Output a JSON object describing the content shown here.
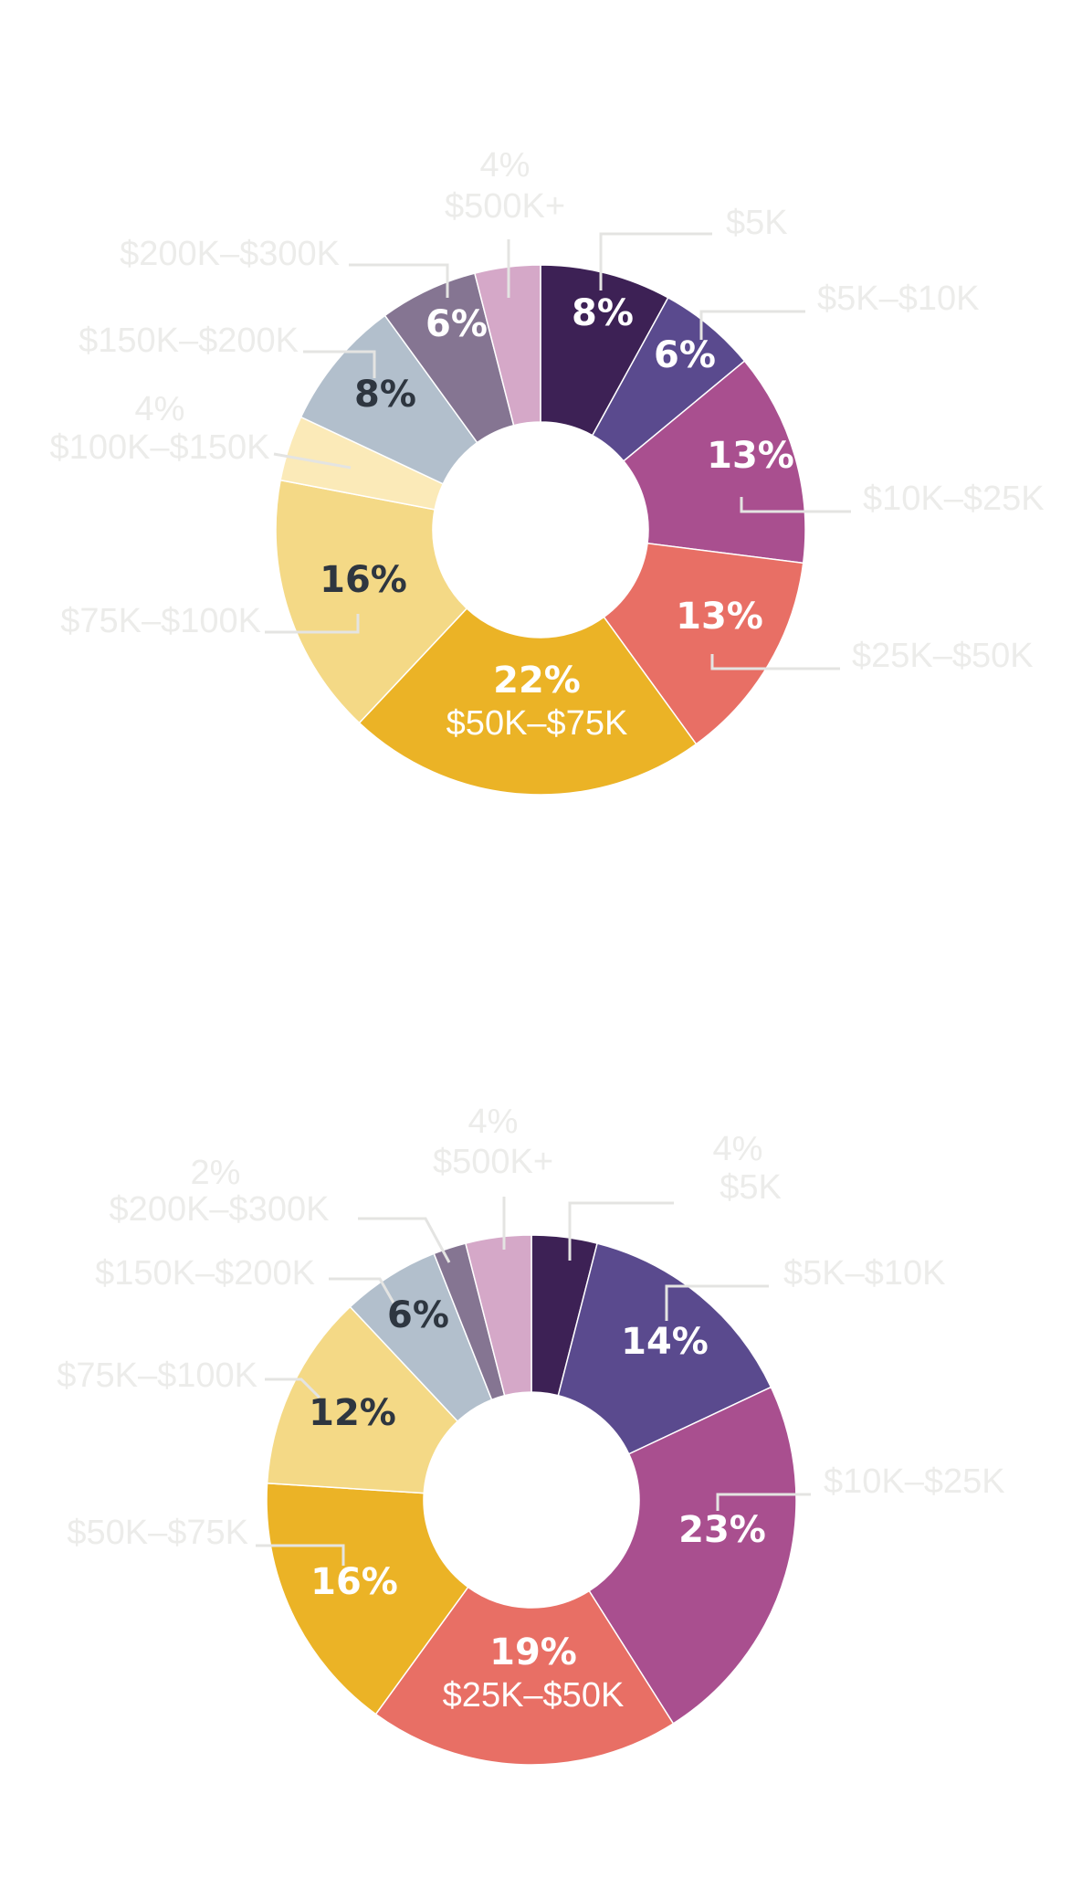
{
  "colors": {
    "under_5k": "#3d2155",
    "5k_10k": "#5a4a8e",
    "10k_25k": "#a94f8f",
    "25k_50k": "#e86f65",
    "50k_75k": "#ebb326",
    "75k_100k": "#f4d986",
    "100k_150k": "#fbeab8",
    "150k_200k": "#b2bfcc",
    "200k_300k": "#857592",
    "500k_plus": "#d5a8c8",
    "label_light": "#ffffff",
    "label_dark": "#2e3640",
    "external_text": "#ececea"
  },
  "chart_data": [
    {
      "type": "pie",
      "donut": true,
      "legend": "none",
      "slices": [
        {
          "key": "under_5k",
          "label": "$5K",
          "value": 8,
          "display": "8%"
        },
        {
          "key": "5k_10k",
          "label": "$5K–$10K",
          "value": 6,
          "display": "6%"
        },
        {
          "key": "10k_25k",
          "label": "$10K–$25K",
          "value": 13,
          "display": "13%"
        },
        {
          "key": "25k_50k",
          "label": "$25K–$50K",
          "value": 13,
          "display": "13%"
        },
        {
          "key": "50k_75k",
          "label": "$50K–$75K",
          "value": 22,
          "display": "22%"
        },
        {
          "key": "75k_100k",
          "label": "$75K–$100K",
          "value": 16,
          "display": "16%"
        },
        {
          "key": "100k_150k",
          "label": "$100K–$150K",
          "value": 4,
          "display": "4%"
        },
        {
          "key": "150k_200k",
          "label": "$150K–$200K",
          "value": 8,
          "display": "8%"
        },
        {
          "key": "200k_300k",
          "label": "$200K–$300K",
          "value": 6,
          "display": "6%"
        },
        {
          "key": "500k_plus",
          "label": "$500K+",
          "value": 4,
          "display": "4%"
        }
      ]
    },
    {
      "type": "pie",
      "donut": true,
      "legend": "none",
      "slices": [
        {
          "key": "under_5k",
          "label": "$5K",
          "value": 4,
          "display": "4%"
        },
        {
          "key": "5k_10k",
          "label": "$5K–$10K",
          "value": 14,
          "display": "14%"
        },
        {
          "key": "10k_25k",
          "label": "$10K–$25K",
          "value": 23,
          "display": "23%"
        },
        {
          "key": "25k_50k",
          "label": "$25K–$50K",
          "value": 19,
          "display": "19%"
        },
        {
          "key": "50k_75k",
          "label": "$50K–$75K",
          "value": 16,
          "display": "16%"
        },
        {
          "key": "75k_100k",
          "label": "$75K–$100K",
          "value": 12,
          "display": "12%"
        },
        {
          "key": "150k_200k",
          "label": "$150K–$200K",
          "value": 6,
          "display": "6%"
        },
        {
          "key": "200k_300k",
          "label": "$200K–$300K",
          "value": 2,
          "display": "2%"
        },
        {
          "key": "500k_plus",
          "label": "$500K+",
          "value": 4,
          "display": "4%"
        }
      ]
    }
  ]
}
